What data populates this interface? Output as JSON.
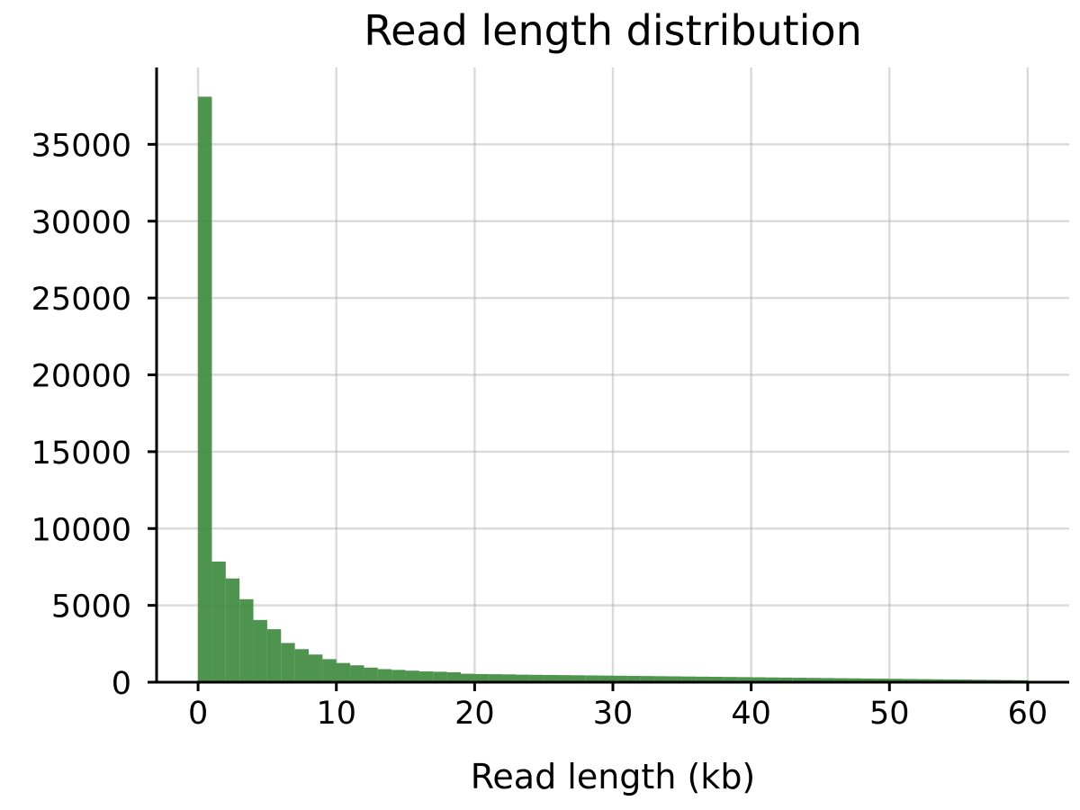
{
  "chart_data": {
    "type": "bar",
    "title": "Read length distribution",
    "xlabel": "Read length (kb)",
    "ylabel": "",
    "xlim": [
      -3,
      63
    ],
    "ylim": [
      0,
      40000
    ],
    "grid": true,
    "bar_color": "#3f8a3f",
    "x_ticks": [
      0,
      10,
      20,
      30,
      40,
      50,
      60
    ],
    "x_tick_labels": [
      "0",
      "10",
      "20",
      "30",
      "40",
      "50",
      "60"
    ],
    "y_ticks": [
      0,
      5000,
      10000,
      15000,
      20000,
      25000,
      30000,
      35000
    ],
    "y_tick_labels": [
      "0",
      "5000",
      "10000",
      "15000",
      "20000",
      "25000",
      "30000",
      "35000"
    ],
    "bin_edges_start": 0,
    "bin_width": 1,
    "values": [
      38100,
      7850,
      6750,
      5400,
      4050,
      3450,
      2550,
      2150,
      1800,
      1500,
      1250,
      1100,
      950,
      850,
      800,
      750,
      700,
      680,
      650,
      550,
      530,
      520,
      510,
      490,
      480,
      470,
      460,
      450,
      440,
      430,
      420,
      410,
      400,
      390,
      380,
      370,
      360,
      350,
      340,
      330,
      320,
      310,
      300,
      290,
      280,
      270,
      260,
      250,
      240,
      230,
      220,
      210,
      200,
      190,
      180,
      170,
      160,
      150,
      140,
      130
    ]
  }
}
